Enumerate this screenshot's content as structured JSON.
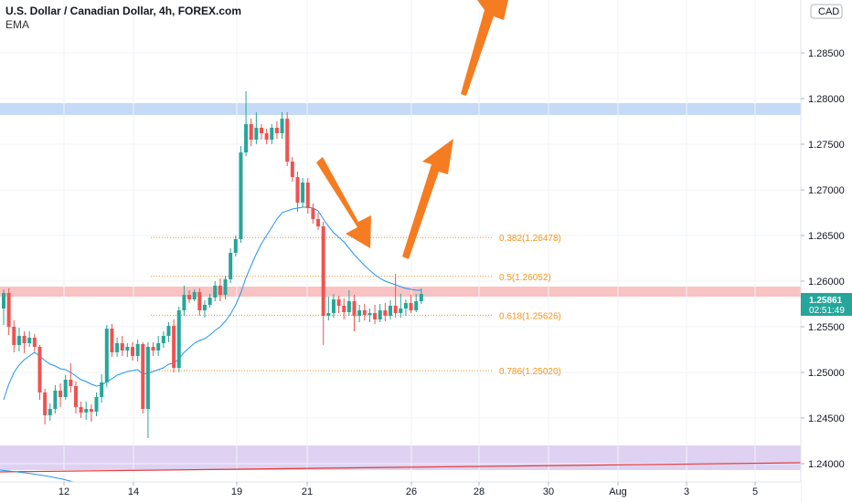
{
  "header": {
    "title": "U.S. Dollar / Canadian Dollar, 4h, FOREX.com",
    "indicator": "EMA"
  },
  "axis": {
    "currency": "CAD"
  },
  "price_tag": {
    "value": "1.25861",
    "countdown": "02:51:49"
  },
  "chart_data": {
    "type": "candlestick",
    "y_ticks": [
      "1.24000",
      "1.24500",
      "1.25000",
      "1.25500",
      "1.26000",
      "1.26500",
      "1.27000",
      "1.27500",
      "1.28000",
      "1.28500"
    ],
    "ylim": [
      1.2385,
      1.2905
    ],
    "x_ticks": [
      "12",
      "14",
      "19",
      "21",
      "26",
      "28",
      "30",
      "Aug",
      "3",
      "5"
    ],
    "fib_levels": [
      {
        "label": "0.382(1.26478)",
        "price": 1.26478
      },
      {
        "label": "0.5(1.26052)",
        "price": 1.26052
      },
      {
        "label": "0.618(1.25626)",
        "price": 1.25626
      },
      {
        "label": "0.786(1.25020)",
        "price": 1.2502
      }
    ],
    "zones": [
      {
        "name": "resistance",
        "from": 1.2782,
        "to": 1.2795,
        "color": "#bbd4f5"
      },
      {
        "name": "support-resistance",
        "from": 1.2583,
        "to": 1.2594,
        "color": "#f8b8b8"
      },
      {
        "name": "lower-zone",
        "from": 1.2393,
        "to": 1.242,
        "color": "#d9c9ef"
      }
    ],
    "candles": [
      [
        1.257,
        1.2587,
        1.2591,
        1.2552
      ],
      [
        1.2587,
        1.255,
        1.2592,
        1.2541
      ],
      [
        1.255,
        1.253,
        1.2557,
        1.2522
      ],
      [
        1.253,
        1.254,
        1.2549,
        1.2523
      ],
      [
        1.254,
        1.2532,
        1.2545,
        1.2521
      ],
      [
        1.2532,
        1.2538,
        1.2545,
        1.2528
      ],
      [
        1.2538,
        1.2528,
        1.2542,
        1.2523
      ],
      [
        1.2528,
        1.2478,
        1.253,
        1.247
      ],
      [
        1.2478,
        1.2453,
        1.2482,
        1.2443
      ],
      [
        1.2453,
        1.246,
        1.2466,
        1.2447
      ],
      [
        1.246,
        1.248,
        1.2486,
        1.2455
      ],
      [
        1.248,
        1.2473,
        1.2488,
        1.2462
      ],
      [
        1.2473,
        1.2492,
        1.2497,
        1.247
      ],
      [
        1.2492,
        1.2485,
        1.251,
        1.2478
      ],
      [
        1.2485,
        1.2462,
        1.249,
        1.2455
      ],
      [
        1.2462,
        1.2456,
        1.2468,
        1.245
      ],
      [
        1.2456,
        1.246,
        1.2468,
        1.2448
      ],
      [
        1.246,
        1.2457,
        1.2465,
        1.2446
      ],
      [
        1.2457,
        1.2473,
        1.2478,
        1.2452
      ],
      [
        1.2473,
        1.2489,
        1.2498,
        1.2467
      ],
      [
        1.2489,
        1.2548,
        1.2552,
        1.2484
      ],
      [
        1.2548,
        1.2522,
        1.2553,
        1.2517
      ],
      [
        1.2522,
        1.2532,
        1.2538,
        1.2517
      ],
      [
        1.2532,
        1.2524,
        1.254,
        1.2518
      ],
      [
        1.2524,
        1.2528,
        1.2532,
        1.2517
      ],
      [
        1.2528,
        1.2518,
        1.2533,
        1.2513
      ],
      [
        1.2518,
        1.2531,
        1.2536,
        1.2512
      ],
      [
        1.2531,
        1.246,
        1.2533,
        1.2455
      ],
      [
        1.246,
        1.2528,
        1.2533,
        1.2428
      ],
      [
        1.2528,
        1.2524,
        1.2533,
        1.2518
      ],
      [
        1.2524,
        1.2532,
        1.254,
        1.2518
      ],
      [
        1.2532,
        1.254,
        1.2545,
        1.2527
      ],
      [
        1.254,
        1.2551,
        1.2555,
        1.2533
      ],
      [
        1.2551,
        1.2505,
        1.2558,
        1.25
      ],
      [
        1.2505,
        1.2568,
        1.2572,
        1.25
      ],
      [
        1.2568,
        1.2585,
        1.2595,
        1.2562
      ],
      [
        1.2585,
        1.258,
        1.259,
        1.2576
      ],
      [
        1.258,
        1.2588,
        1.2591,
        1.2578
      ],
      [
        1.2588,
        1.2568,
        1.2592,
        1.2562
      ],
      [
        1.2568,
        1.2574,
        1.2579,
        1.256
      ],
      [
        1.2574,
        1.2582,
        1.2586,
        1.2571
      ],
      [
        1.2582,
        1.2595,
        1.26,
        1.2578
      ],
      [
        1.2595,
        1.2585,
        1.2603,
        1.2578
      ],
      [
        1.2585,
        1.2602,
        1.2606,
        1.258
      ],
      [
        1.2602,
        1.2631,
        1.2636,
        1.2598
      ],
      [
        1.2631,
        1.2646,
        1.265,
        1.2627
      ],
      [
        1.2646,
        1.2741,
        1.2748,
        1.2642
      ],
      [
        1.2741,
        1.2772,
        1.2808,
        1.2737
      ],
      [
        1.2772,
        1.2755,
        1.2778,
        1.2748
      ],
      [
        1.2755,
        1.2768,
        1.2785,
        1.275
      ],
      [
        1.2768,
        1.2762,
        1.2772,
        1.2755
      ],
      [
        1.2762,
        1.2755,
        1.2767,
        1.275
      ],
      [
        1.2755,
        1.2768,
        1.2772,
        1.275
      ],
      [
        1.2768,
        1.2762,
        1.2775,
        1.2756
      ],
      [
        1.2762,
        1.2778,
        1.2785,
        1.2756
      ],
      [
        1.2778,
        1.2731,
        1.2785,
        1.2726
      ],
      [
        1.2731,
        1.2714,
        1.2736,
        1.2709
      ],
      [
        1.2714,
        1.2686,
        1.272,
        1.2676
      ],
      [
        1.2686,
        1.2708,
        1.2713,
        1.2681
      ],
      [
        1.2708,
        1.268,
        1.2713,
        1.2674
      ],
      [
        1.268,
        1.2668,
        1.2685,
        1.2663
      ],
      [
        1.2668,
        1.266,
        1.2675,
        1.2656
      ],
      [
        1.266,
        1.2562,
        1.2665,
        1.253
      ],
      [
        1.2562,
        1.2565,
        1.2583,
        1.2557
      ],
      [
        1.2565,
        1.258,
        1.2586,
        1.256
      ],
      [
        1.258,
        1.2573,
        1.2584,
        1.2565
      ],
      [
        1.2573,
        1.2566,
        1.2581,
        1.2558
      ],
      [
        1.2566,
        1.2578,
        1.259,
        1.2562
      ],
      [
        1.2578,
        1.2562,
        1.2585,
        1.2545
      ],
      [
        1.2562,
        1.2568,
        1.2574,
        1.2555
      ],
      [
        1.2568,
        1.2563,
        1.2575,
        1.2557
      ],
      [
        1.2563,
        1.2565,
        1.257,
        1.2555
      ],
      [
        1.2565,
        1.2558,
        1.2574,
        1.2553
      ],
      [
        1.2558,
        1.2568,
        1.2575,
        1.2555
      ],
      [
        1.2568,
        1.2562,
        1.2576,
        1.2556
      ],
      [
        1.2562,
        1.2573,
        1.2579,
        1.2558
      ],
      [
        1.2573,
        1.2565,
        1.2608,
        1.256
      ],
      [
        1.2565,
        1.257,
        1.2586,
        1.256
      ],
      [
        1.257,
        1.2576,
        1.258,
        1.2562
      ],
      [
        1.2576,
        1.2568,
        1.2585,
        1.2565
      ],
      [
        1.2568,
        1.2578,
        1.2586,
        1.2566
      ],
      [
        1.2578,
        1.2586,
        1.2592,
        1.2575
      ]
    ],
    "ema": [
      1.247,
      1.2487,
      1.25,
      1.2508,
      1.2514,
      1.2518,
      1.2522,
      1.2518,
      1.2513,
      1.2509,
      1.2507,
      1.2504,
      1.2503,
      1.25,
      1.2496,
      1.2492,
      1.249,
      1.2487,
      1.2485,
      1.2486,
      1.249,
      1.2493,
      1.2497,
      1.2499,
      1.2501,
      1.2502,
      1.2503,
      1.2498,
      1.2499,
      1.2501,
      1.2503,
      1.2505,
      1.2509,
      1.251,
      1.2515,
      1.2522,
      1.2527,
      1.2532,
      1.2535,
      1.2537,
      1.2541,
      1.2546,
      1.255,
      1.2556,
      1.2564,
      1.2574,
      1.2587,
      1.2604,
      1.2617,
      1.263,
      1.2641,
      1.265,
      1.2659,
      1.2668,
      1.2675,
      1.2677,
      1.2679,
      1.268,
      1.2681,
      1.2681,
      1.268,
      1.2677,
      1.2668,
      1.266,
      1.2653,
      1.2648,
      1.2643,
      1.2636,
      1.2629,
      1.2623,
      1.2617,
      1.2612,
      1.2607,
      1.2603,
      1.26,
      1.2598,
      1.2596,
      1.2594,
      1.2592,
      1.2591,
      1.259,
      1.259
    ],
    "grid": true,
    "annotations": [
      "down arrow",
      "up arrow",
      "up arrow",
      "red trend line"
    ]
  }
}
